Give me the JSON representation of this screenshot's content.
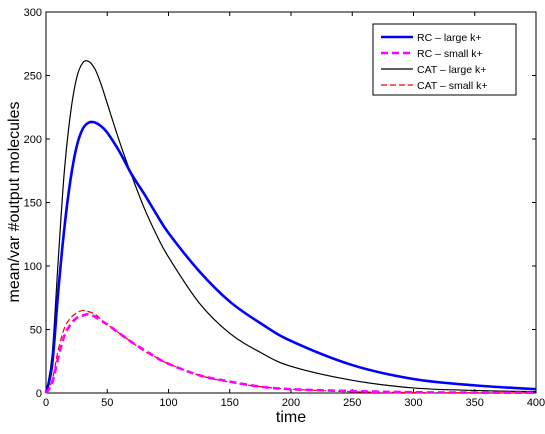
{
  "chart_data": {
    "type": "line",
    "title": "",
    "xlabel": "time",
    "ylabel": "mean/var #output molecules",
    "xlim": [
      0,
      400
    ],
    "ylim": [
      0,
      300
    ],
    "xticks": [
      0,
      50,
      100,
      150,
      200,
      250,
      300,
      350,
      400
    ],
    "yticks": [
      0,
      50,
      100,
      150,
      200,
      250,
      300
    ],
    "grid": false,
    "legend_position": "top-right",
    "x": [
      0,
      5,
      10,
      15,
      20,
      25,
      30,
      35,
      40,
      45,
      50,
      60,
      70,
      80,
      90,
      100,
      125,
      150,
      175,
      200,
      250,
      300,
      350,
      400
    ],
    "series": [
      {
        "name": "RC – large k+",
        "color": "#0000ff",
        "style": "solid",
        "width": "thick",
        "values": [
          0,
          22,
          80,
          130,
          168,
          194,
          208,
          213,
          213,
          210,
          205,
          190,
          172,
          157,
          141,
          126,
          96,
          72,
          55,
          41,
          22,
          11,
          6,
          3
        ]
      },
      {
        "name": "RC – small k+",
        "color": "#ff00ff",
        "style": "dashed",
        "width": "thick",
        "values": [
          0,
          8,
          28,
          45,
          54,
          59,
          61,
          62,
          60,
          57,
          54,
          47,
          40,
          34,
          28,
          23,
          14,
          9,
          5,
          3,
          1.5,
          0.6,
          0.3,
          0.2
        ]
      },
      {
        "name": "CAT – large k+",
        "color": "#000000",
        "style": "solid",
        "width": "thin",
        "values": [
          0,
          30,
          105,
          175,
          220,
          248,
          260,
          261,
          255,
          243,
          228,
          198,
          171,
          146,
          125,
          107,
          71,
          47,
          32,
          21,
          10,
          4,
          2,
          1
        ]
      },
      {
        "name": "CAT – small k+",
        "color": "#ff0000",
        "style": "dashed",
        "width": "thin",
        "values": [
          0,
          10,
          34,
          51,
          59,
          63,
          65,
          64,
          62,
          58,
          54,
          47,
          40,
          33,
          28,
          23,
          14,
          8.5,
          5,
          3,
          1,
          0.4,
          0.2,
          0.1
        ]
      }
    ]
  }
}
